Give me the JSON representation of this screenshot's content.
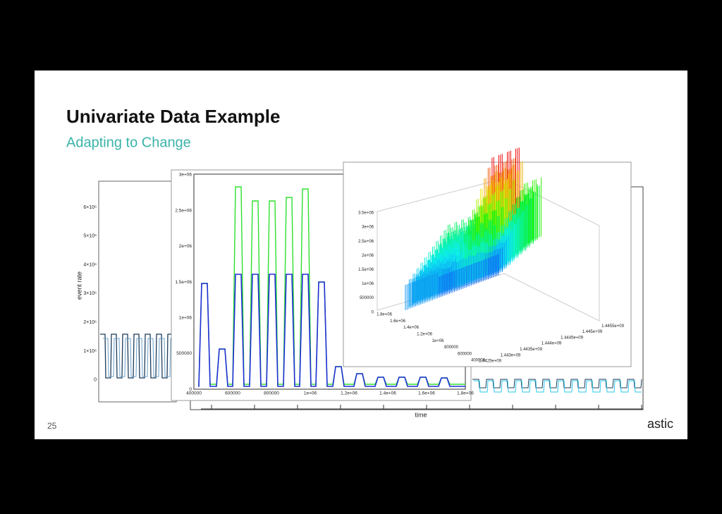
{
  "title": "Univariate Data Example",
  "subtitle": "Adapting to Change",
  "page_number": "25",
  "logo": "astic",
  "panels": [
    {
      "ylabel": "event rate",
      "yticks": [
        "6×10⁶",
        "5×10⁶",
        "4×10⁶",
        "3×10⁶",
        "2×10⁶",
        "1×10⁶",
        "0"
      ]
    },
    {
      "xlabel": "time"
    },
    {
      "yticks": [
        "3e+06",
        "2.5e+06",
        "2e+06",
        "1.5e+06",
        "1e+06",
        "500000",
        "0"
      ],
      "xticks": [
        "400000",
        "600000",
        "800000",
        "1e+06",
        "1.2e+06",
        "1.4e+06",
        "1.6e+06",
        "1.8e+06"
      ]
    },
    {
      "zticks": [
        "3.5e+06",
        "3e+06",
        "2.5e+06",
        "2e+06",
        "1.5e+06",
        "1e+06",
        "500000",
        "0"
      ],
      "yticks": [
        "1.8e+06",
        "1.6e+06",
        "1.4e+06",
        "1.2e+06",
        "1e+06",
        "800000",
        "600000",
        "400000"
      ],
      "xticks": [
        "1.4425e+09",
        "1.443e+09",
        "1.4435e+09",
        "1.444e+09",
        "1.4445e+09",
        "1.445e+09",
        "1.4455e+09"
      ]
    }
  ]
}
